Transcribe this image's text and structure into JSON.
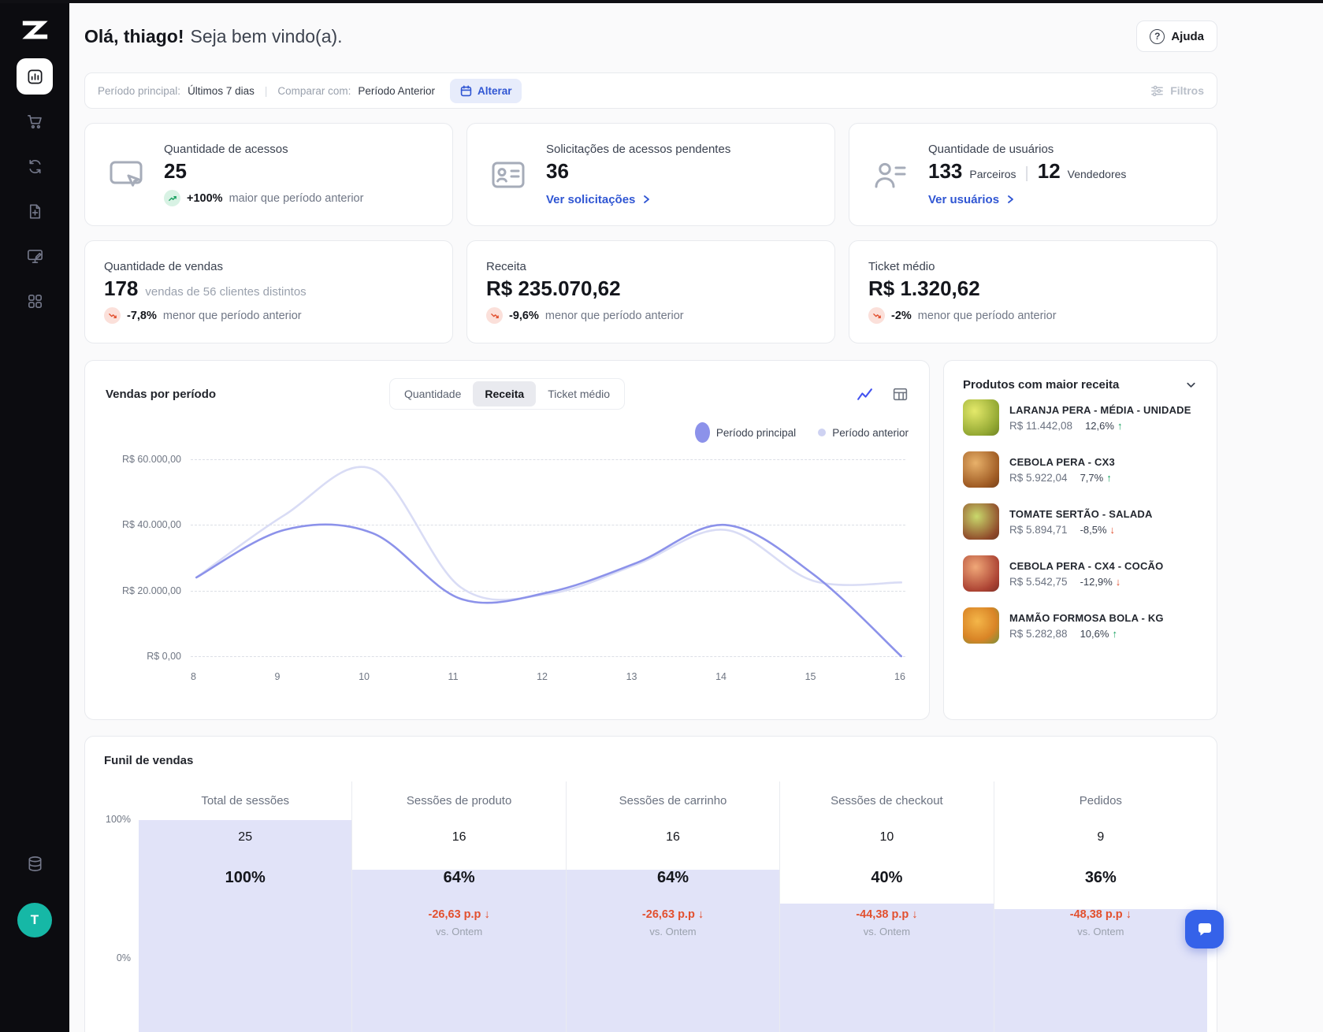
{
  "colors": {
    "accent_blue": "#3056d3",
    "accent_blue_bg": "#e7ecfb",
    "positive_green": "#17a05f",
    "negative_red": "#e2502f",
    "line_main": "#8c92ea",
    "line_prev": "#d9dcf5",
    "funnel_bar": "#e1e3f8",
    "sidebar_bg": "#0c0c10",
    "avatar_teal": "#16b8a6"
  },
  "sidebar": {
    "avatar_initial": "T"
  },
  "header": {
    "greeting_bold": "Olá, thiago!",
    "greeting_rest": "Seja bem vindo(a).",
    "help_label": "Ajuda",
    "help_icon": "?"
  },
  "filter_bar": {
    "period_label": "Período principal:",
    "period_value": "Últimos 7 dias",
    "separator": "|",
    "compare_label": "Comparar com:",
    "compare_value": "Período Anterior",
    "change_button": "Alterar",
    "filters_label": "Filtros"
  },
  "stat_cards": {
    "acessos": {
      "label": "Quantidade de acessos",
      "value": "25",
      "delta": "+100%",
      "delta_text": "maior que período anterior",
      "direction": "up"
    },
    "solicitacoes": {
      "label": "Solicitações de acessos pendentes",
      "value": "36",
      "link_label": "Ver solicitações"
    },
    "usuarios": {
      "label": "Quantidade de usuários",
      "partners_value": "133",
      "partners_label": "Parceiros",
      "divider": "|",
      "sellers_value": "12",
      "sellers_label": "Vendedores",
      "link_label": "Ver usuários"
    },
    "vendas": {
      "label": "Quantidade de vendas",
      "value": "178",
      "value_suffix": "vendas de 56 clientes distintos",
      "delta": "-7,8%",
      "delta_text": "menor que período anterior",
      "direction": "down"
    },
    "receita": {
      "label": "Receita",
      "value": "R$ 235.070,62",
      "delta": "-9,6%",
      "delta_text": "menor que período anterior",
      "direction": "down"
    },
    "ticket": {
      "label": "Ticket médio",
      "value": "R$ 1.320,62",
      "delta": "-2%",
      "delta_text": "menor que período anterior",
      "direction": "down"
    }
  },
  "sales_chart": {
    "title": "Vendas por período",
    "tabs": [
      {
        "label": "Quantidade",
        "active": false
      },
      {
        "label": "Receita",
        "active": true
      },
      {
        "label": "Ticket médio",
        "active": false
      }
    ]
  },
  "products_panel": {
    "title": "Produtos com maior receita",
    "items": [
      {
        "name": "LARANJA PERA - MÉDIA - UNIDADE",
        "price": "R$ 11.442,08",
        "percent": "12,6%",
        "arrow": "↑",
        "direction": "up"
      },
      {
        "name": "CEBOLA PERA - CX3",
        "price": "R$ 5.922,04",
        "percent": "7,7%",
        "arrow": "↑",
        "direction": "up"
      },
      {
        "name": "TOMATE SERTÃO - SALADA",
        "price": "R$ 5.894,71",
        "percent": "-8,5%",
        "arrow": "↓",
        "direction": "down"
      },
      {
        "name": "CEBOLA PERA - CX4 - COCÃO",
        "price": "R$ 5.542,75",
        "percent": "-12,9%",
        "arrow": "↓",
        "direction": "down"
      },
      {
        "name": "MAMÃO FORMOSA BOLA - KG",
        "price": "R$ 5.282,88",
        "percent": "10,6%",
        "arrow": "↑",
        "direction": "up"
      }
    ]
  },
  "funnel": {
    "title": "Funil de vendas"
  },
  "chart_data": [
    {
      "type": "line",
      "title": "Vendas por período",
      "active_metric": "Receita",
      "x": [
        8,
        9,
        10,
        11,
        12,
        13,
        14,
        15,
        16
      ],
      "yticks": [
        "R$ 60.000,00",
        "R$ 40.000,00",
        "R$ 20.000,00",
        "R$ 0,00"
      ],
      "ylim": [
        0,
        60000
      ],
      "grid": "horizontal-dashed",
      "legend_position": "top-right",
      "series": [
        {
          "name": "Período principal",
          "color": "#8c92ea",
          "values": [
            24000,
            38500,
            37500,
            17500,
            19500,
            28500,
            40000,
            25000,
            0
          ]
        },
        {
          "name": "Período anterior",
          "color": "#d9dcf5",
          "values": [
            24000,
            43000,
            57000,
            21000,
            19000,
            28000,
            38500,
            23000,
            22500
          ]
        }
      ]
    },
    {
      "type": "funnel",
      "title": "Funil de vendas",
      "yticks": [
        "100%",
        "0%"
      ],
      "stages": [
        {
          "label": "Total de sessões",
          "count": 25,
          "percent": 100,
          "percent_label": "100%"
        },
        {
          "label": "Sessões de produto",
          "count": 16,
          "percent": 64,
          "percent_label": "64%",
          "delta": "-26,63 p.p",
          "delta_icon": "↓",
          "delta_direction": "down",
          "vs_label": "vs. Ontem"
        },
        {
          "label": "Sessões de carrinho",
          "count": 16,
          "percent": 64,
          "percent_label": "64%",
          "delta": "-26,63 p.p",
          "delta_icon": "↓",
          "delta_direction": "down",
          "vs_label": "vs. Ontem"
        },
        {
          "label": "Sessões de checkout",
          "count": 10,
          "percent": 40,
          "percent_label": "40%",
          "delta": "-44,38 p.p",
          "delta_icon": "↓",
          "delta_direction": "down",
          "vs_label": "vs. Ontem"
        },
        {
          "label": "Pedidos",
          "count": 9,
          "percent": 36,
          "percent_label": "36%",
          "delta": "-48,38 p.p",
          "delta_icon": "↓",
          "delta_direction": "down",
          "vs_label": "vs. Ontem"
        }
      ]
    }
  ]
}
